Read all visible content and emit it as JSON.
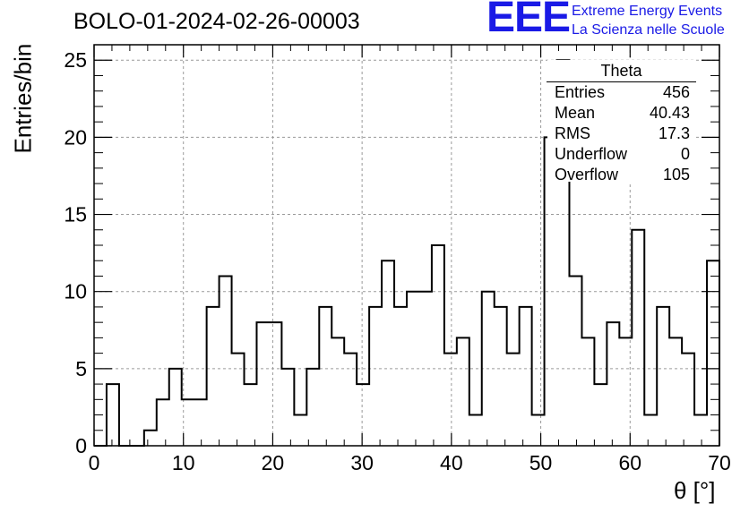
{
  "title": "BOLO-01-2024-02-26-00003",
  "logo": {
    "text": "EEE",
    "line1": "Extreme Energy Events",
    "line2": "La Scienza nelle Scuole",
    "color": "#1a1ae6"
  },
  "stats": {
    "header": "Theta",
    "rows": [
      {
        "label": "Entries",
        "value": "456"
      },
      {
        "label": "Mean",
        "value": "40.43"
      },
      {
        "label": "RMS",
        "value": "17.3"
      },
      {
        "label": "Underflow",
        "value": "0"
      },
      {
        "label": "Overflow",
        "value": "105"
      }
    ]
  },
  "chart_data": {
    "type": "histogram",
    "xlabel": "θ [°]",
    "ylabel": "Entries/bin",
    "xlim": [
      0,
      70
    ],
    "ylim": [
      0,
      26
    ],
    "x_ticks": [
      0,
      10,
      20,
      30,
      40,
      50,
      60,
      70
    ],
    "y_ticks": [
      0,
      5,
      10,
      15,
      20,
      25
    ],
    "bin_width": 1.4,
    "bin_start": 0,
    "values": [
      0,
      4,
      0,
      0,
      1,
      3,
      5,
      3,
      3,
      9,
      11,
      6,
      4,
      8,
      8,
      5,
      2,
      5,
      9,
      7,
      6,
      4,
      9,
      12,
      9,
      10,
      10,
      13,
      6,
      7,
      2,
      10,
      9,
      6,
      9,
      2,
      20,
      25,
      11,
      7,
      4,
      8,
      7,
      14,
      2,
      9,
      7,
      6,
      2,
      12
    ],
    "grid": true,
    "line_color": "#000000"
  }
}
